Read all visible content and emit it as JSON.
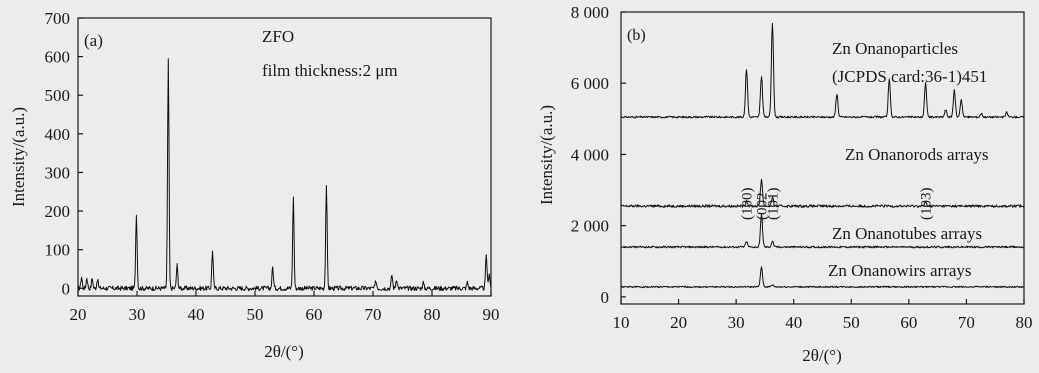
{
  "chart_data": [
    {
      "type": "line",
      "panel_label": "(a)",
      "title": "ZFO",
      "annotation": "film thickness:2 μm",
      "xlabel": "2θ/(°)",
      "ylabel": "Intensity/(a.u.)",
      "xlim": [
        20,
        90
      ],
      "ylim": [
        -20,
        700
      ],
      "x_ticks": [
        "20",
        "30",
        "40",
        "50",
        "60",
        "70",
        "80",
        "90"
      ],
      "y_ticks": [
        "0",
        "100",
        "200",
        "300",
        "400",
        "500",
        "600",
        "700"
      ],
      "x_tick_values": [
        20,
        30,
        40,
        50,
        60,
        70,
        80,
        90
      ],
      "y_tick_values": [
        0,
        100,
        200,
        300,
        400,
        500,
        600,
        700
      ],
      "baseline": 0,
      "peaks": [
        {
          "x": 20.6,
          "y": 30
        },
        {
          "x": 21.5,
          "y": 28
        },
        {
          "x": 22.4,
          "y": 26
        },
        {
          "x": 23.3,
          "y": 24
        },
        {
          "x": 29.9,
          "y": 195
        },
        {
          "x": 35.3,
          "y": 590
        },
        {
          "x": 36.8,
          "y": 60
        },
        {
          "x": 42.8,
          "y": 100
        },
        {
          "x": 53.0,
          "y": 55
        },
        {
          "x": 56.5,
          "y": 240
        },
        {
          "x": 62.1,
          "y": 270
        },
        {
          "x": 70.5,
          "y": 20
        },
        {
          "x": 73.2,
          "y": 35
        },
        {
          "x": 74.0,
          "y": 25
        },
        {
          "x": 78.5,
          "y": 15
        },
        {
          "x": 86.0,
          "y": 15
        },
        {
          "x": 89.2,
          "y": 88
        },
        {
          "x": 89.7,
          "y": 40
        }
      ]
    },
    {
      "type": "line",
      "panel_label": "(b)",
      "xlabel": "2θ/(°)",
      "ylabel": "Intensity/(a.u.)",
      "xlim": [
        10,
        80
      ],
      "ylim": [
        -200,
        8000
      ],
      "x_ticks": [
        "10",
        "20",
        "30",
        "40",
        "50",
        "60",
        "70",
        "80"
      ],
      "y_ticks": [
        "0",
        "2 000",
        "4 000",
        "6 000",
        "8 000"
      ],
      "x_tick_values": [
        10,
        20,
        30,
        40,
        50,
        60,
        70,
        80
      ],
      "y_tick_values": [
        0,
        2000,
        4000,
        6000,
        8000
      ],
      "series": [
        {
          "name": "Zn Onanoparticles",
          "name_line2": "(JCPDS card:36-1)451",
          "baseline": 5050,
          "peaks": [
            {
              "x": 31.8,
              "y": 6400
            },
            {
              "x": 34.4,
              "y": 6200
            },
            {
              "x": 36.3,
              "y": 7700
            },
            {
              "x": 47.5,
              "y": 5700
            },
            {
              "x": 56.6,
              "y": 6100
            },
            {
              "x": 62.9,
              "y": 6000
            },
            {
              "x": 66.4,
              "y": 5250
            },
            {
              "x": 67.9,
              "y": 5800
            },
            {
              "x": 69.1,
              "y": 5550
            },
            {
              "x": 72.6,
              "y": 5150
            },
            {
              "x": 77.0,
              "y": 5180
            }
          ]
        },
        {
          "name": "Zn Onanorods arrays",
          "baseline": 2550,
          "peaks": [
            {
              "x": 31.8,
              "y": 2700
            },
            {
              "x": 34.4,
              "y": 3300
            },
            {
              "x": 36.3,
              "y": 2780
            },
            {
              "x": 62.9,
              "y": 2650
            }
          ]
        },
        {
          "name": "Zn Onanotubes arrays",
          "baseline": 1400,
          "peaks": [
            {
              "x": 31.8,
              "y": 1550
            },
            {
              "x": 34.4,
              "y": 2300
            },
            {
              "x": 36.3,
              "y": 1560
            }
          ]
        },
        {
          "name": "Zn Onanowirs  arrays",
          "baseline": 280,
          "peaks": [
            {
              "x": 34.4,
              "y": 850
            },
            {
              "x": 36.3,
              "y": 340
            }
          ]
        }
      ],
      "peak_labels": [
        {
          "text": "(100)",
          "x": 31.8
        },
        {
          "text": "(002",
          "x": 34.4
        },
        {
          "text": "(101)",
          "x": 36.3
        },
        {
          "text": "(103)",
          "x": 62.9
        }
      ]
    }
  ]
}
